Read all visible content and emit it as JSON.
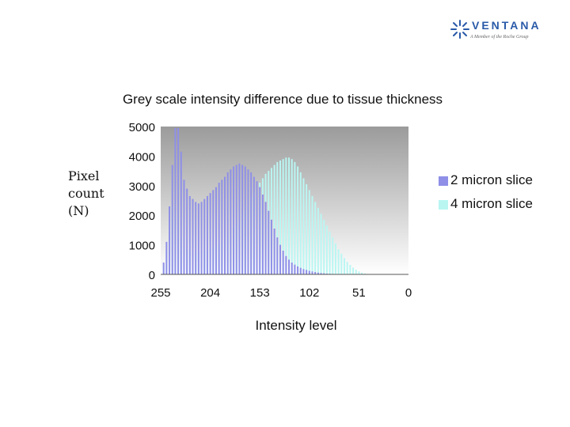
{
  "logo": {
    "brand": "VENTANA",
    "tagline": "A Member of the Roche Group"
  },
  "y_axis_label_lines": [
    "Pixel",
    "count",
    "(N)"
  ],
  "colors": {
    "series_2micron": "#8f8fe8",
    "series_4micron": "#b9f6f2",
    "plot_bg_top": "#9b9b9b",
    "plot_bg_bottom": "#ffffff"
  },
  "chart_data": {
    "type": "bar",
    "title": "Grey scale intensity difference due to tissue thickness",
    "xlabel": "Intensity level",
    "ylabel": "",
    "xlim": [
      255,
      0
    ],
    "ylim": [
      0,
      5000
    ],
    "x_ticks": [
      255,
      204,
      153,
      102,
      51,
      0
    ],
    "y_ticks": [
      0,
      1000,
      2000,
      3000,
      4000,
      5000
    ],
    "legend_position": "right",
    "x": [
      252,
      249,
      246,
      243,
      240,
      237,
      234,
      231,
      228,
      225,
      222,
      219,
      216,
      213,
      210,
      207,
      204,
      201,
      198,
      195,
      192,
      189,
      186,
      183,
      180,
      177,
      174,
      171,
      168,
      165,
      162,
      159,
      156,
      153,
      150,
      147,
      144,
      141,
      138,
      135,
      132,
      129,
      126,
      123,
      120,
      117,
      114,
      111,
      108,
      105,
      102,
      99,
      96,
      93,
      90,
      87,
      84,
      81,
      78,
      75,
      72,
      69,
      66,
      63,
      60,
      57,
      54,
      51,
      48,
      45,
      42,
      39,
      36,
      33,
      30,
      27,
      24,
      21,
      18,
      15,
      12,
      9,
      6,
      3,
      0
    ],
    "series": [
      {
        "name": "2 micron slice",
        "values": [
          400,
          1100,
          2300,
          3700,
          4950,
          4950,
          4150,
          3200,
          2900,
          2650,
          2550,
          2450,
          2400,
          2450,
          2550,
          2650,
          2750,
          2850,
          2950,
          3100,
          3200,
          3300,
          3450,
          3550,
          3650,
          3700,
          3750,
          3700,
          3650,
          3550,
          3450,
          3300,
          3150,
          2950,
          2700,
          2450,
          2150,
          1850,
          1550,
          1250,
          1000,
          800,
          620,
          500,
          400,
          330,
          270,
          220,
          180,
          150,
          120,
          100,
          80,
          60,
          45,
          35,
          25,
          20,
          15,
          10,
          8,
          5,
          3,
          2,
          0,
          0,
          0,
          0,
          0,
          0,
          0,
          0,
          0,
          0,
          0,
          0,
          0,
          0,
          0,
          0,
          0,
          0,
          0,
          0,
          0
        ]
      },
      {
        "name": "4 micron slice",
        "values": [
          300,
          800,
          1500,
          2300,
          2100,
          1600,
          1200,
          950,
          850,
          800,
          780,
          760,
          760,
          770,
          790,
          820,
          860,
          910,
          960,
          1020,
          1100,
          1200,
          1300,
          1420,
          1550,
          1700,
          1850,
          2000,
          2200,
          2400,
          2600,
          2800,
          2950,
          3100,
          3250,
          3400,
          3500,
          3600,
          3700,
          3800,
          3850,
          3900,
          3950,
          3950,
          3900,
          3800,
          3650,
          3450,
          3250,
          3050,
          2850,
          2650,
          2450,
          2250,
          2050,
          1850,
          1650,
          1450,
          1250,
          1050,
          850,
          700,
          550,
          420,
          320,
          230,
          160,
          100,
          60,
          30,
          15,
          5,
          0,
          0,
          0,
          0,
          0,
          0,
          0,
          0,
          0,
          0,
          0,
          0,
          0
        ]
      }
    ]
  }
}
